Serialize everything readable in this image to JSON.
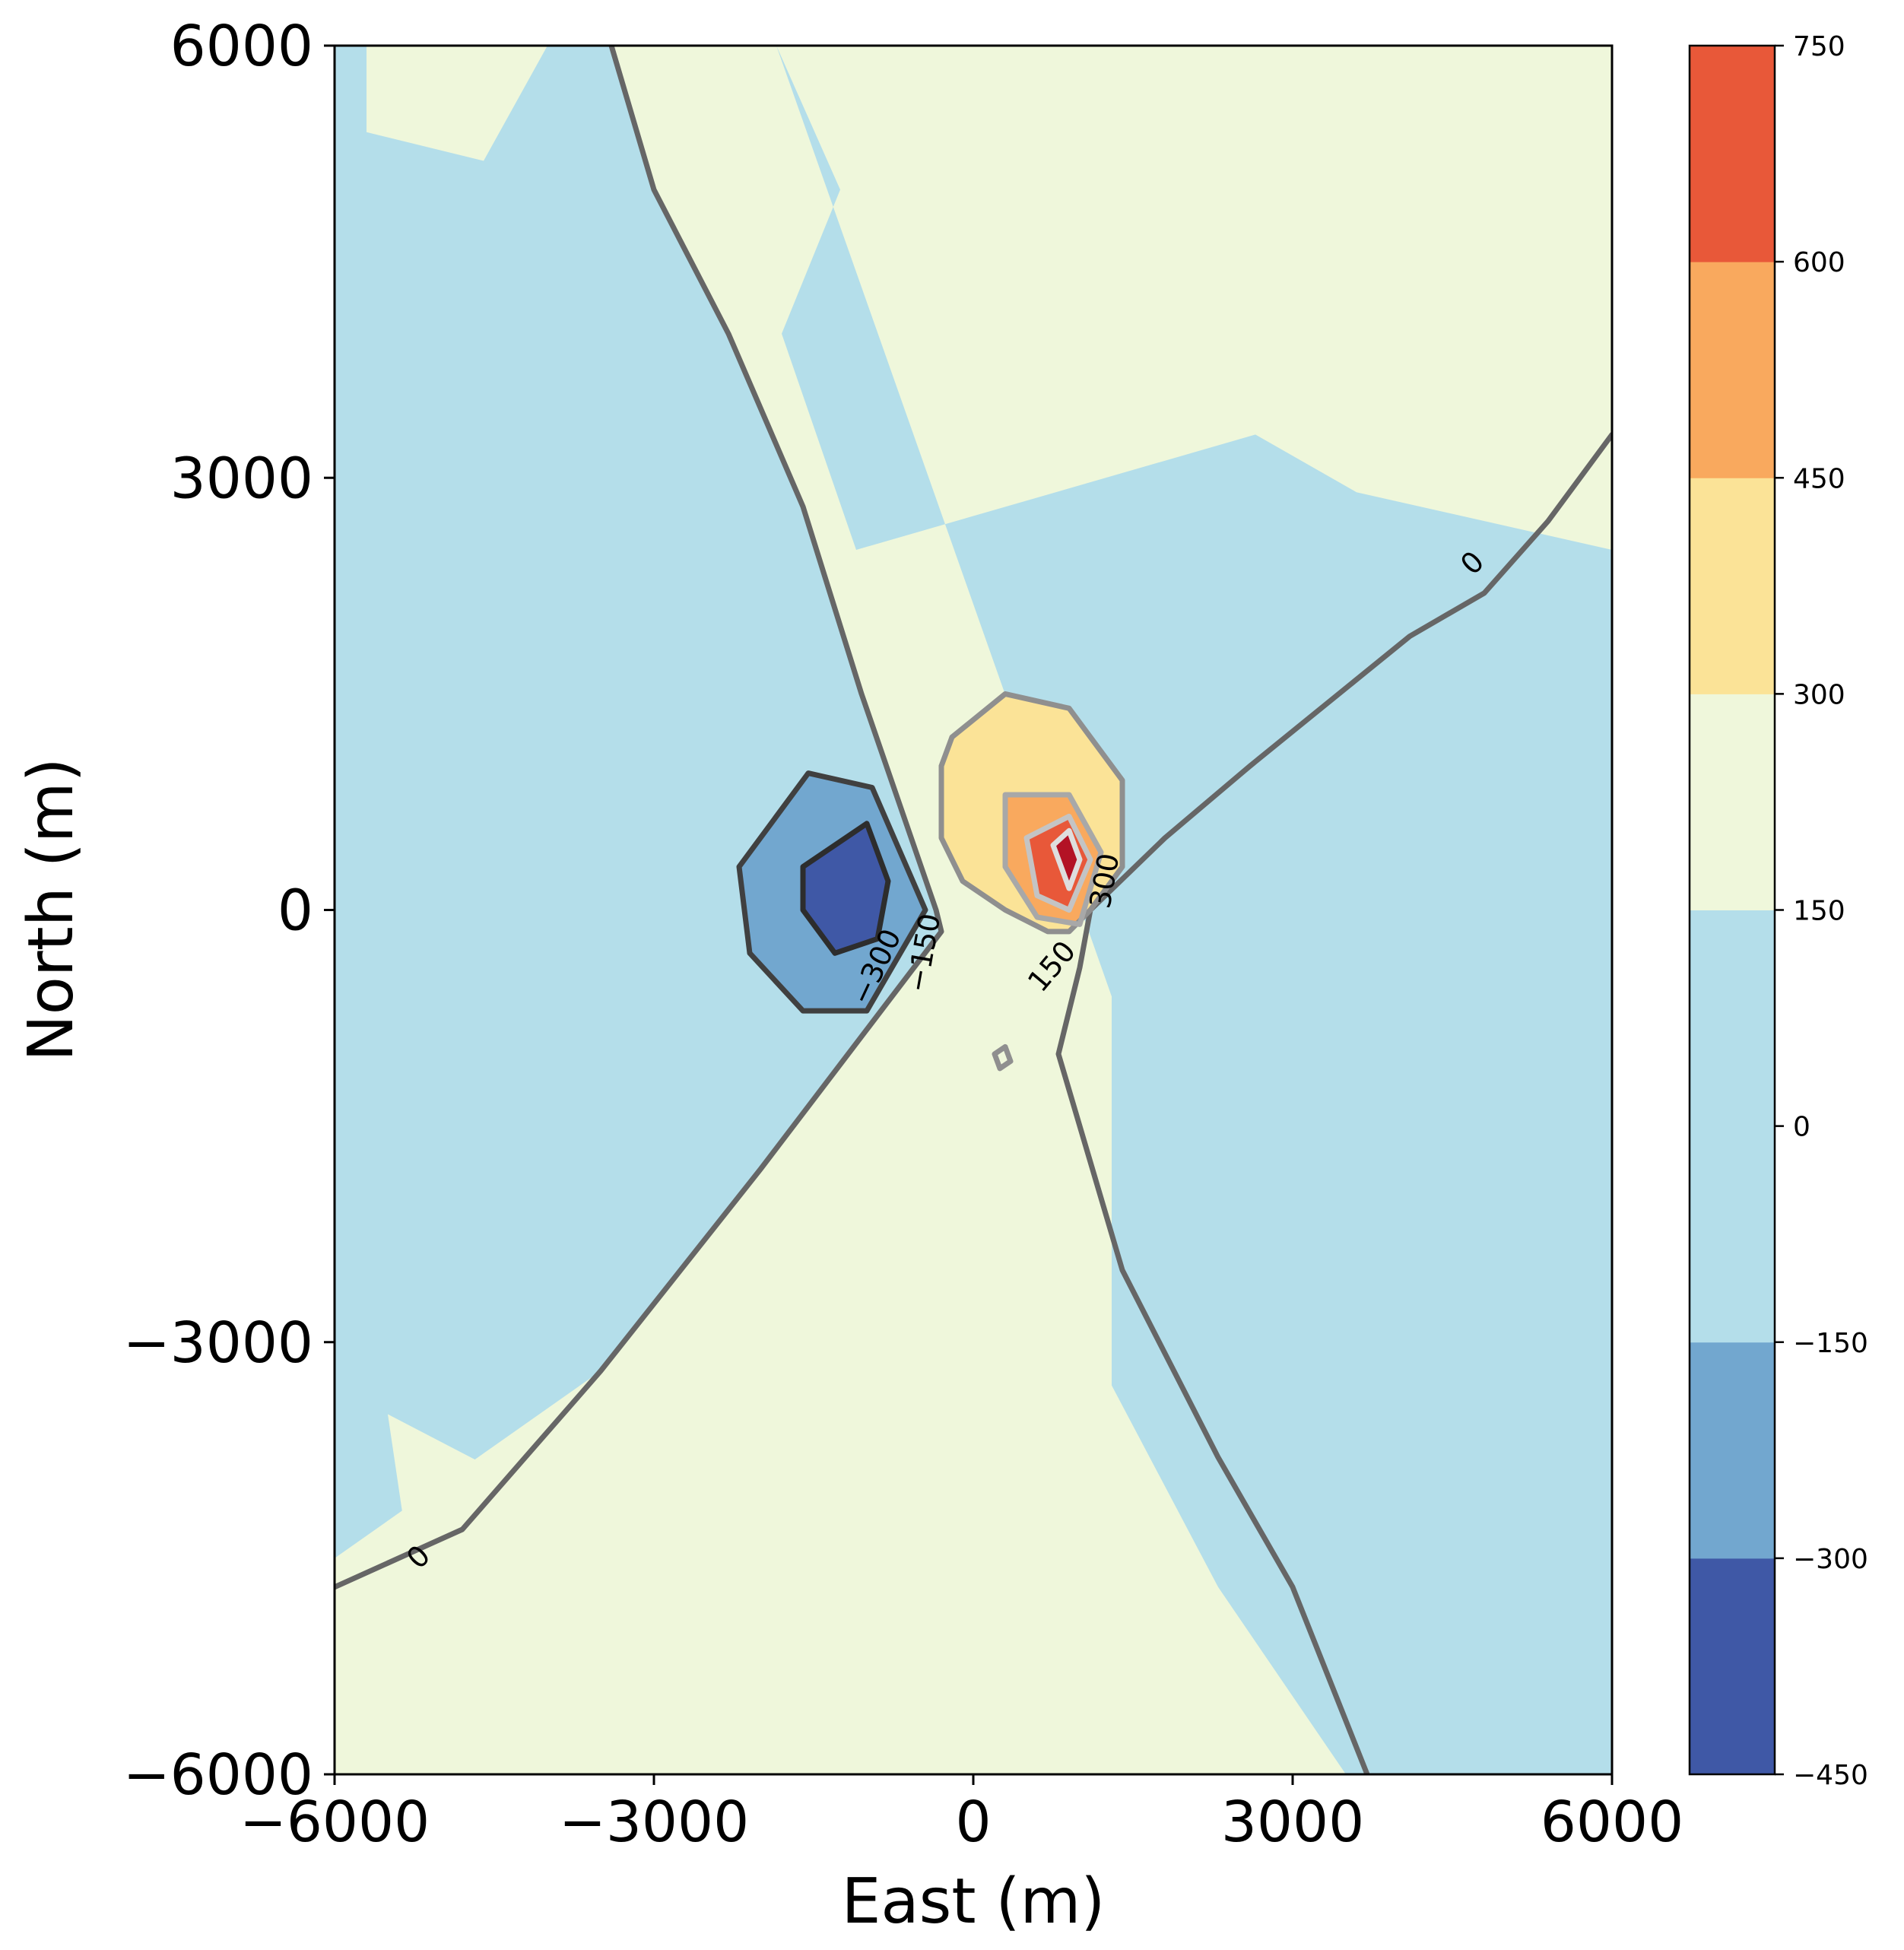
{
  "chart_data": {
    "type": "heatmap",
    "xlabel": "East (m)",
    "ylabel": "North (m)",
    "xlim": [
      -6000,
      6000
    ],
    "ylim": [
      -6000,
      6000
    ],
    "x_ticks": [
      -6000,
      -3000,
      0,
      3000,
      6000
    ],
    "y_ticks": [
      -6000,
      -3000,
      0,
      3000,
      6000
    ],
    "x_tick_labels": [
      "−6000",
      "−3000",
      "0",
      "3000",
      "6000"
    ],
    "y_tick_labels": [
      "−6000",
      "−3000",
      "0",
      "3000",
      "6000"
    ],
    "colorbar": {
      "levels": [
        -450,
        -300,
        -150,
        0,
        150,
        300,
        450,
        600,
        750
      ],
      "tick_labels": [
        "−450",
        "−300",
        "−150",
        "0",
        "150",
        "300",
        "450",
        "600",
        "750"
      ],
      "colors": [
        "#3f58a6",
        "#72a7cf",
        "#b4deea",
        "#b4deea",
        "#eff7db",
        "#fbe397",
        "#f9a95e",
        "#e85839",
        "#b31225"
      ]
    },
    "background_color": "#eff7db",
    "contour_line_colors": {
      "-450": "#1f1f1f",
      "-300": "#2d2d2d",
      "-150": "#404040",
      "0": "#666666",
      "150": "#8f8f8f",
      "300": "#a8a8a8",
      "450": "#c4c4c4",
      "600": "#dedede",
      "750": "#f7f7f7"
    },
    "regions": [
      {
        "level": -150,
        "points": [
          [
            -6000,
            6000
          ],
          [
            -3400,
            6000
          ],
          [
            -3000,
            5000
          ],
          [
            -2300,
            4000
          ],
          [
            -1600,
            2800
          ],
          [
            -1050,
            1500
          ],
          [
            -350,
            0
          ],
          [
            -300,
            -150
          ],
          [
            -2000,
            -1800
          ],
          [
            -3500,
            -3200
          ],
          [
            -6000,
            -4500
          ]
        ]
      },
      {
        "level": -150,
        "points": [
          [
            -1850,
            6000
          ],
          [
            -1250,
            5000
          ],
          [
            -1800,
            4000
          ],
          [
            -1100,
            2500
          ],
          [
            2650,
            3300
          ],
          [
            3600,
            2900
          ],
          [
            6000,
            2500
          ],
          [
            6000,
            -6000
          ],
          [
            3500,
            -6000
          ],
          [
            2300,
            -4700
          ],
          [
            1300,
            -3300
          ],
          [
            1300,
            -600
          ]
        ]
      },
      {
        "level": 0,
        "points": [
          [
            -5700,
            6000
          ],
          [
            -4000,
            6000
          ],
          [
            -4600,
            5200
          ],
          [
            -5700,
            5400
          ]
        ]
      },
      {
        "level": 0,
        "points": [
          [
            5300,
            6000
          ],
          [
            5700,
            6000
          ],
          [
            6000,
            5900
          ],
          [
            6000,
            6000
          ]
        ]
      },
      {
        "level": 0,
        "points": [
          [
            -5500,
            -3500
          ],
          [
            -4200,
            -4000
          ],
          [
            -4100,
            -5300
          ],
          [
            -4800,
            -6000
          ],
          [
            -5000,
            -6000
          ]
        ]
      },
      {
        "level": 0,
        "points": [
          [
            -3200,
            -4900
          ],
          [
            -2900,
            -5000
          ],
          [
            -1800,
            -4600
          ],
          [
            -700,
            -5100
          ],
          [
            -600,
            -6000
          ],
          [
            -3000,
            -6000
          ],
          [
            -3300,
            -5500
          ]
        ]
      },
      {
        "level": 0,
        "points": [
          [
            1700,
            -4400
          ],
          [
            2200,
            -5200
          ],
          [
            1300,
            -5900
          ],
          [
            1100,
            -6000
          ],
          [
            1600,
            -6000
          ]
        ]
      },
      {
        "level": -300,
        "points": [
          [
            -2200,
            300
          ],
          [
            -1550,
            950
          ],
          [
            -950,
            850
          ],
          [
            -450,
            0
          ],
          [
            -1000,
            -700
          ],
          [
            -1600,
            -700
          ],
          [
            -2100,
            -300
          ]
        ]
      },
      {
        "level": -450,
        "points": [
          [
            -1600,
            300
          ],
          [
            -1000,
            600
          ],
          [
            -800,
            200
          ],
          [
            -900,
            -200
          ],
          [
            -1300,
            -300
          ],
          [
            -1600,
            0
          ]
        ]
      },
      {
        "level": 150,
        "points": [
          [
            -300,
            1000
          ],
          [
            -200,
            1200
          ],
          [
            300,
            1500
          ],
          [
            900,
            1400
          ],
          [
            1400,
            900
          ],
          [
            1400,
            300
          ],
          [
            1100,
            0
          ],
          [
            900,
            -150
          ],
          [
            700,
            -150
          ],
          [
            300,
            0
          ],
          [
            -100,
            200
          ],
          [
            -300,
            500
          ]
        ]
      },
      {
        "level": 300,
        "points": [
          [
            300,
            800
          ],
          [
            900,
            800
          ],
          [
            1200,
            400
          ],
          [
            1000,
            -100
          ],
          [
            600,
            -50
          ],
          [
            300,
            300
          ]
        ]
      },
      {
        "level": 450,
        "points": [
          [
            500,
            500
          ],
          [
            900,
            650
          ],
          [
            1100,
            350
          ],
          [
            900,
            0
          ],
          [
            600,
            100
          ]
        ]
      },
      {
        "level": 600,
        "points": [
          [
            750,
            450
          ],
          [
            900,
            550
          ],
          [
            1000,
            350
          ],
          [
            900,
            150
          ]
        ]
      }
    ],
    "contour_lines": [
      {
        "level": 0,
        "points": [
          [
            -3400,
            6000
          ],
          [
            -3000,
            5000
          ],
          [
            -2300,
            4000
          ],
          [
            -1600,
            2800
          ],
          [
            -1050,
            1500
          ],
          [
            -350,
            0
          ],
          [
            -300,
            -150
          ],
          [
            -2000,
            -1800
          ],
          [
            -3500,
            -3200
          ],
          [
            -4800,
            -4300
          ],
          [
            -6000,
            -4700
          ]
        ]
      },
      {
        "level": 0,
        "points": [
          [
            6000,
            3300
          ],
          [
            5400,
            2700
          ],
          [
            4800,
            2200
          ],
          [
            4100,
            1900
          ],
          [
            2600,
            1000
          ],
          [
            1800,
            500
          ],
          [
            1100,
            0
          ],
          [
            1000,
            -400
          ],
          [
            800,
            -1000
          ],
          [
            1400,
            -2500
          ],
          [
            2300,
            -3800
          ],
          [
            3000,
            -4700
          ],
          [
            3700,
            -6000
          ]
        ]
      },
      {
        "level": -150,
        "points": [
          [
            -2200,
            300
          ],
          [
            -1550,
            950
          ],
          [
            -950,
            850
          ],
          [
            -450,
            0
          ],
          [
            -1000,
            -700
          ],
          [
            -1600,
            -700
          ],
          [
            -2100,
            -300
          ],
          [
            -2200,
            300
          ]
        ]
      },
      {
        "level": -300,
        "points": [
          [
            -1600,
            300
          ],
          [
            -1000,
            600
          ],
          [
            -800,
            200
          ],
          [
            -900,
            -200
          ],
          [
            -1300,
            -300
          ],
          [
            -1600,
            0
          ],
          [
            -1600,
            300
          ]
        ]
      },
      {
        "level": 150,
        "points": [
          [
            -300,
            1000
          ],
          [
            -200,
            1200
          ],
          [
            300,
            1500
          ],
          [
            900,
            1400
          ],
          [
            1400,
            900
          ],
          [
            1400,
            300
          ],
          [
            1100,
            0
          ],
          [
            900,
            -150
          ],
          [
            700,
            -150
          ],
          [
            300,
            0
          ],
          [
            -100,
            200
          ],
          [
            -300,
            500
          ],
          [
            -300,
            1000
          ]
        ]
      },
      {
        "level": 300,
        "points": [
          [
            300,
            800
          ],
          [
            900,
            800
          ],
          [
            1200,
            400
          ],
          [
            1000,
            -100
          ],
          [
            600,
            -50
          ],
          [
            300,
            300
          ],
          [
            300,
            800
          ]
        ]
      },
      {
        "level": 450,
        "points": [
          [
            500,
            500
          ],
          [
            900,
            650
          ],
          [
            1100,
            350
          ],
          [
            900,
            0
          ],
          [
            600,
            100
          ],
          [
            500,
            500
          ]
        ]
      },
      {
        "level": 600,
        "points": [
          [
            750,
            450
          ],
          [
            900,
            550
          ],
          [
            1000,
            350
          ],
          [
            900,
            150
          ],
          [
            750,
            450
          ]
        ]
      },
      {
        "level": 150,
        "points": [
          [
            200,
            -1000
          ],
          [
            300,
            -950
          ],
          [
            350,
            -1050
          ],
          [
            250,
            -1100
          ],
          [
            200,
            -1000
          ]
        ]
      }
    ],
    "contour_labels": [
      {
        "text": "0",
        "x": 4700,
        "y": 2400,
        "angle": -45
      },
      {
        "text": "0",
        "x": -5200,
        "y": -4500,
        "angle": -45
      },
      {
        "text": "−300",
        "x": -900,
        "y": -400,
        "angle": -65
      },
      {
        "text": "−150",
        "x": -450,
        "y": -300,
        "angle": -80
      },
      {
        "text": "150",
        "x": 750,
        "y": -400,
        "angle": -50
      },
      {
        "text": "300",
        "x": 1250,
        "y": 200,
        "angle": -80
      }
    ]
  }
}
